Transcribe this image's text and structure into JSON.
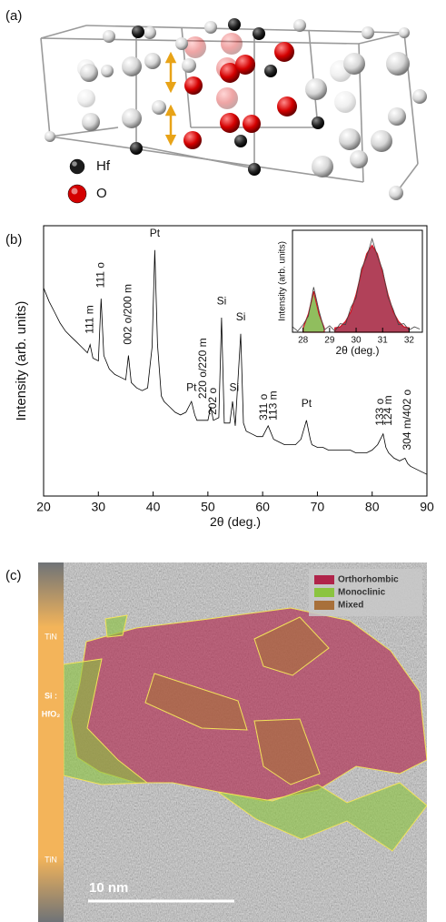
{
  "panel_labels": [
    "(a)",
    "(b)",
    "(c)"
  ],
  "structure_legend": [
    {
      "label": "Hf",
      "color": "#1c1c1c"
    },
    {
      "label": "O",
      "color": "#d40000"
    }
  ],
  "chart_data": [
    {
      "type": "line",
      "x_label": "2θ (deg.)",
      "y_label": "Intensity (arb. units)",
      "x": [
        20,
        21,
        22,
        23,
        24,
        25,
        26,
        27,
        28,
        28.5,
        29,
        30,
        30.5,
        31,
        32,
        33,
        34,
        35,
        35.5,
        36,
        37,
        38,
        39,
        39.8,
        40.3,
        40.8,
        41.5,
        42,
        43,
        44,
        45,
        46,
        47,
        47.6,
        48,
        49,
        50,
        50.5,
        51,
        52,
        52.5,
        53,
        54,
        54.5,
        55,
        56,
        56.5,
        57,
        58,
        59,
        60,
        61,
        62,
        63,
        64,
        65,
        66,
        67,
        68,
        68.7,
        69,
        70,
        71,
        72,
        73,
        74,
        75,
        76,
        77,
        78,
        79,
        80,
        81,
        82,
        82.5,
        83,
        84,
        85,
        86,
        86.5,
        87,
        88,
        89,
        90
      ],
      "series": [
        {
          "color": "#000000",
          "values": [
            77,
            72,
            68,
            64,
            61,
            59,
            57,
            55,
            53,
            56,
            51,
            50,
            73,
            52,
            47,
            45,
            44,
            43,
            52,
            42,
            40,
            39,
            40,
            55,
            91,
            56,
            37,
            35,
            33,
            31,
            30,
            31,
            35,
            30,
            28,
            28,
            28,
            33,
            28,
            29,
            66,
            27,
            27,
            35,
            26,
            60,
            27,
            24,
            23,
            22,
            22,
            26,
            21,
            20,
            19,
            19,
            19,
            21,
            28,
            21,
            19,
            18,
            18,
            17,
            17,
            17,
            17,
            17,
            16,
            16,
            16,
            17,
            19,
            23,
            18,
            16,
            14,
            13,
            14,
            12,
            11,
            10,
            9,
            8
          ]
        }
      ],
      "xlim": [
        20,
        90
      ],
      "xticks": [
        20,
        30,
        40,
        50,
        60,
        70,
        80,
        90
      ],
      "ylim": [
        0,
        100
      ],
      "annotations": [
        {
          "text": "111 m",
          "x": 28.5,
          "y": 60
        },
        {
          "text": "111 o",
          "x": 30.5,
          "y": 77
        },
        {
          "text": "002 o/200 m",
          "x": 35.5,
          "y": 56
        },
        {
          "text": "Pt",
          "x": 40.3,
          "y": 95
        },
        {
          "text": "Pt",
          "x": 47,
          "y": 38
        },
        {
          "text": "220 o/220 m",
          "x": 49.2,
          "y": 36
        },
        {
          "text": "202 o",
          "x": 51,
          "y": 30
        },
        {
          "text": "Si",
          "x": 52.5,
          "y": 70
        },
        {
          "text": "Si",
          "x": 54.8,
          "y": 38
        },
        {
          "text": "Si",
          "x": 56,
          "y": 64
        },
        {
          "text": "311 o",
          "x": 60.3,
          "y": 28
        },
        {
          "text": "113 m",
          "x": 62,
          "y": 28
        },
        {
          "text": "Pt",
          "x": 68,
          "y": 32
        },
        {
          "text": "133 o",
          "x": 81.5,
          "y": 26
        },
        {
          "text": "124 m",
          "x": 83,
          "y": 26
        },
        {
          "text": "304 m/402 o",
          "x": 86.5,
          "y": 17
        }
      ]
    },
    {
      "type": "line",
      "x_label": "2θ (deg.)",
      "y_label": "Intensity (arb. units)",
      "x": [
        27.6,
        27.8,
        28.0,
        28.2,
        28.4,
        28.6,
        28.8,
        29.0,
        29.2,
        29.4,
        29.6,
        29.8,
        30.0,
        30.2,
        30.4,
        30.6,
        30.8,
        31.0,
        31.2,
        31.4,
        31.6,
        31.8,
        32.0,
        32.2,
        32.4
      ],
      "series": [
        {
          "color": "#7cb342",
          "fill": true,
          "values": [
            null,
            null,
            0.09,
            0.22,
            0.43,
            0.22,
            0.09,
            null,
            null,
            null,
            null,
            null,
            null,
            null,
            null,
            null,
            null,
            null,
            null,
            null,
            null,
            null,
            null,
            null,
            null
          ]
        },
        {
          "color": "#a3203c",
          "fill": true,
          "values": [
            null,
            null,
            null,
            null,
            null,
            null,
            null,
            null,
            0.09,
            0.1,
            0.15,
            0.24,
            0.4,
            0.61,
            0.78,
            0.86,
            0.78,
            0.61,
            0.4,
            0.24,
            0.15,
            0.1,
            0.09,
            null,
            null
          ]
        },
        {
          "color": "#444444",
          "values": [
            0.1,
            0.06,
            0.12,
            0.2,
            0.47,
            0.25,
            0.07,
            0.11,
            0.06,
            0.13,
            0.12,
            0.28,
            0.37,
            0.64,
            0.75,
            0.92,
            0.76,
            0.63,
            0.38,
            0.26,
            0.12,
            0.13,
            0.07,
            0.1,
            0.08
          ]
        }
      ],
      "xlim": [
        27.6,
        32.5
      ],
      "xticks": [
        28,
        29,
        30,
        31,
        32
      ],
      "ylim": [
        0.05,
        1
      ]
    }
  ],
  "micrograph": {
    "legend": [
      {
        "label": "Orthorhombic",
        "color": "#b0244a"
      },
      {
        "label": "Monoclinic",
        "color": "#8bc43f"
      },
      {
        "label": "Mixed",
        "color": "#a8703a"
      }
    ],
    "layers": [
      "TiN",
      "Si :",
      "HfO₂",
      "TiN"
    ],
    "scale_bar": "10 nm"
  }
}
